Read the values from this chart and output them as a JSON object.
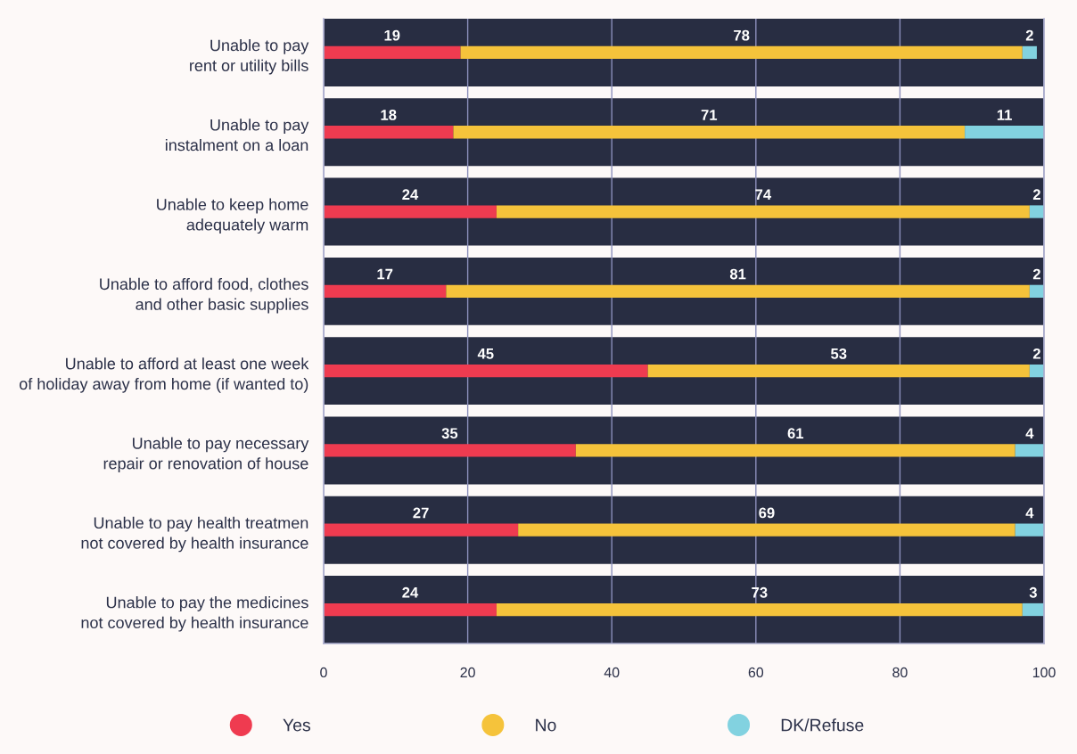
{
  "chart_data": {
    "type": "bar",
    "orientation": "horizontal",
    "stacked": true,
    "categories": [
      "Unable to pay\nrent or utility bills",
      "Unable to pay\ninstalment on a loan",
      "Unable to keep home\nadequately warm",
      "Unable to afford food, clothes\nand other basic supplies",
      "Unable to afford at least one week\nof holiday away from home (if wanted to)",
      "Unable to pay necessary\nrepair or renovation of house",
      "Unable to pay health treatmen\nnot covered by health insurance",
      "Unable to pay the medicines\nnot covered by health insurance"
    ],
    "series": [
      {
        "name": "Yes",
        "color": "#ef3b50",
        "values": [
          19,
          18,
          24,
          17,
          45,
          35,
          27,
          24
        ]
      },
      {
        "name": "No",
        "color": "#f5c33b",
        "values": [
          78,
          71,
          74,
          81,
          53,
          61,
          69,
          73
        ]
      },
      {
        "name": "DK/Refuse",
        "color": "#82d2e0",
        "values": [
          2,
          11,
          2,
          2,
          2,
          4,
          4,
          3
        ]
      }
    ],
    "xlim": [
      0,
      100
    ],
    "xticks": [
      0,
      20,
      40,
      60,
      80,
      100
    ],
    "grid": "x",
    "legend": "bottom",
    "marker": "circle",
    "data_labels": true
  }
}
